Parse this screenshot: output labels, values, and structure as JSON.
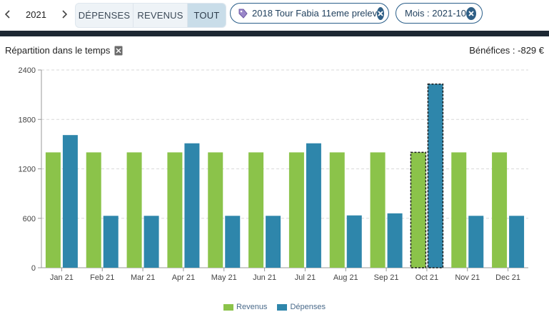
{
  "toolbar": {
    "year": "2021",
    "segments": [
      "DÉPENSES",
      "REVENUS",
      "TOUT"
    ],
    "active_segment": "TOUT",
    "filters": [
      {
        "label": "2018 Tour Fabia 11eme prelev",
        "icon": "tag-icon"
      },
      {
        "label": "Mois : 2021-10"
      }
    ]
  },
  "header": {
    "title": "Répartition dans le temps",
    "benefit": "Bénéfices : -829 €"
  },
  "colors": {
    "revenus": "#8bc34a",
    "depenses": "#2e86ab",
    "accent": "#2b5f8a"
  },
  "chart_data": {
    "type": "bar",
    "categories": [
      "Jan 21",
      "Feb 21",
      "Mar 21",
      "Apr 21",
      "May 21",
      "Jun 21",
      "Jul 21",
      "Aug 21",
      "Sep 21",
      "Oct 21",
      "Nov 21",
      "Dec 21"
    ],
    "series": [
      {
        "name": "Revenus",
        "values": [
          1400,
          1400,
          1400,
          1400,
          1400,
          1400,
          1400,
          1400,
          1400,
          1400,
          1400,
          1400
        ]
      },
      {
        "name": "Dépenses",
        "values": [
          1610,
          630,
          630,
          1510,
          630,
          630,
          1510,
          635,
          660,
          2229,
          630,
          630
        ]
      }
    ],
    "highlighted_category": "Oct 21",
    "yticks": [
      0,
      600,
      1200,
      1800,
      2400
    ],
    "ylim": [
      0,
      2400
    ],
    "grid": true,
    "legend_position": "bottom"
  }
}
